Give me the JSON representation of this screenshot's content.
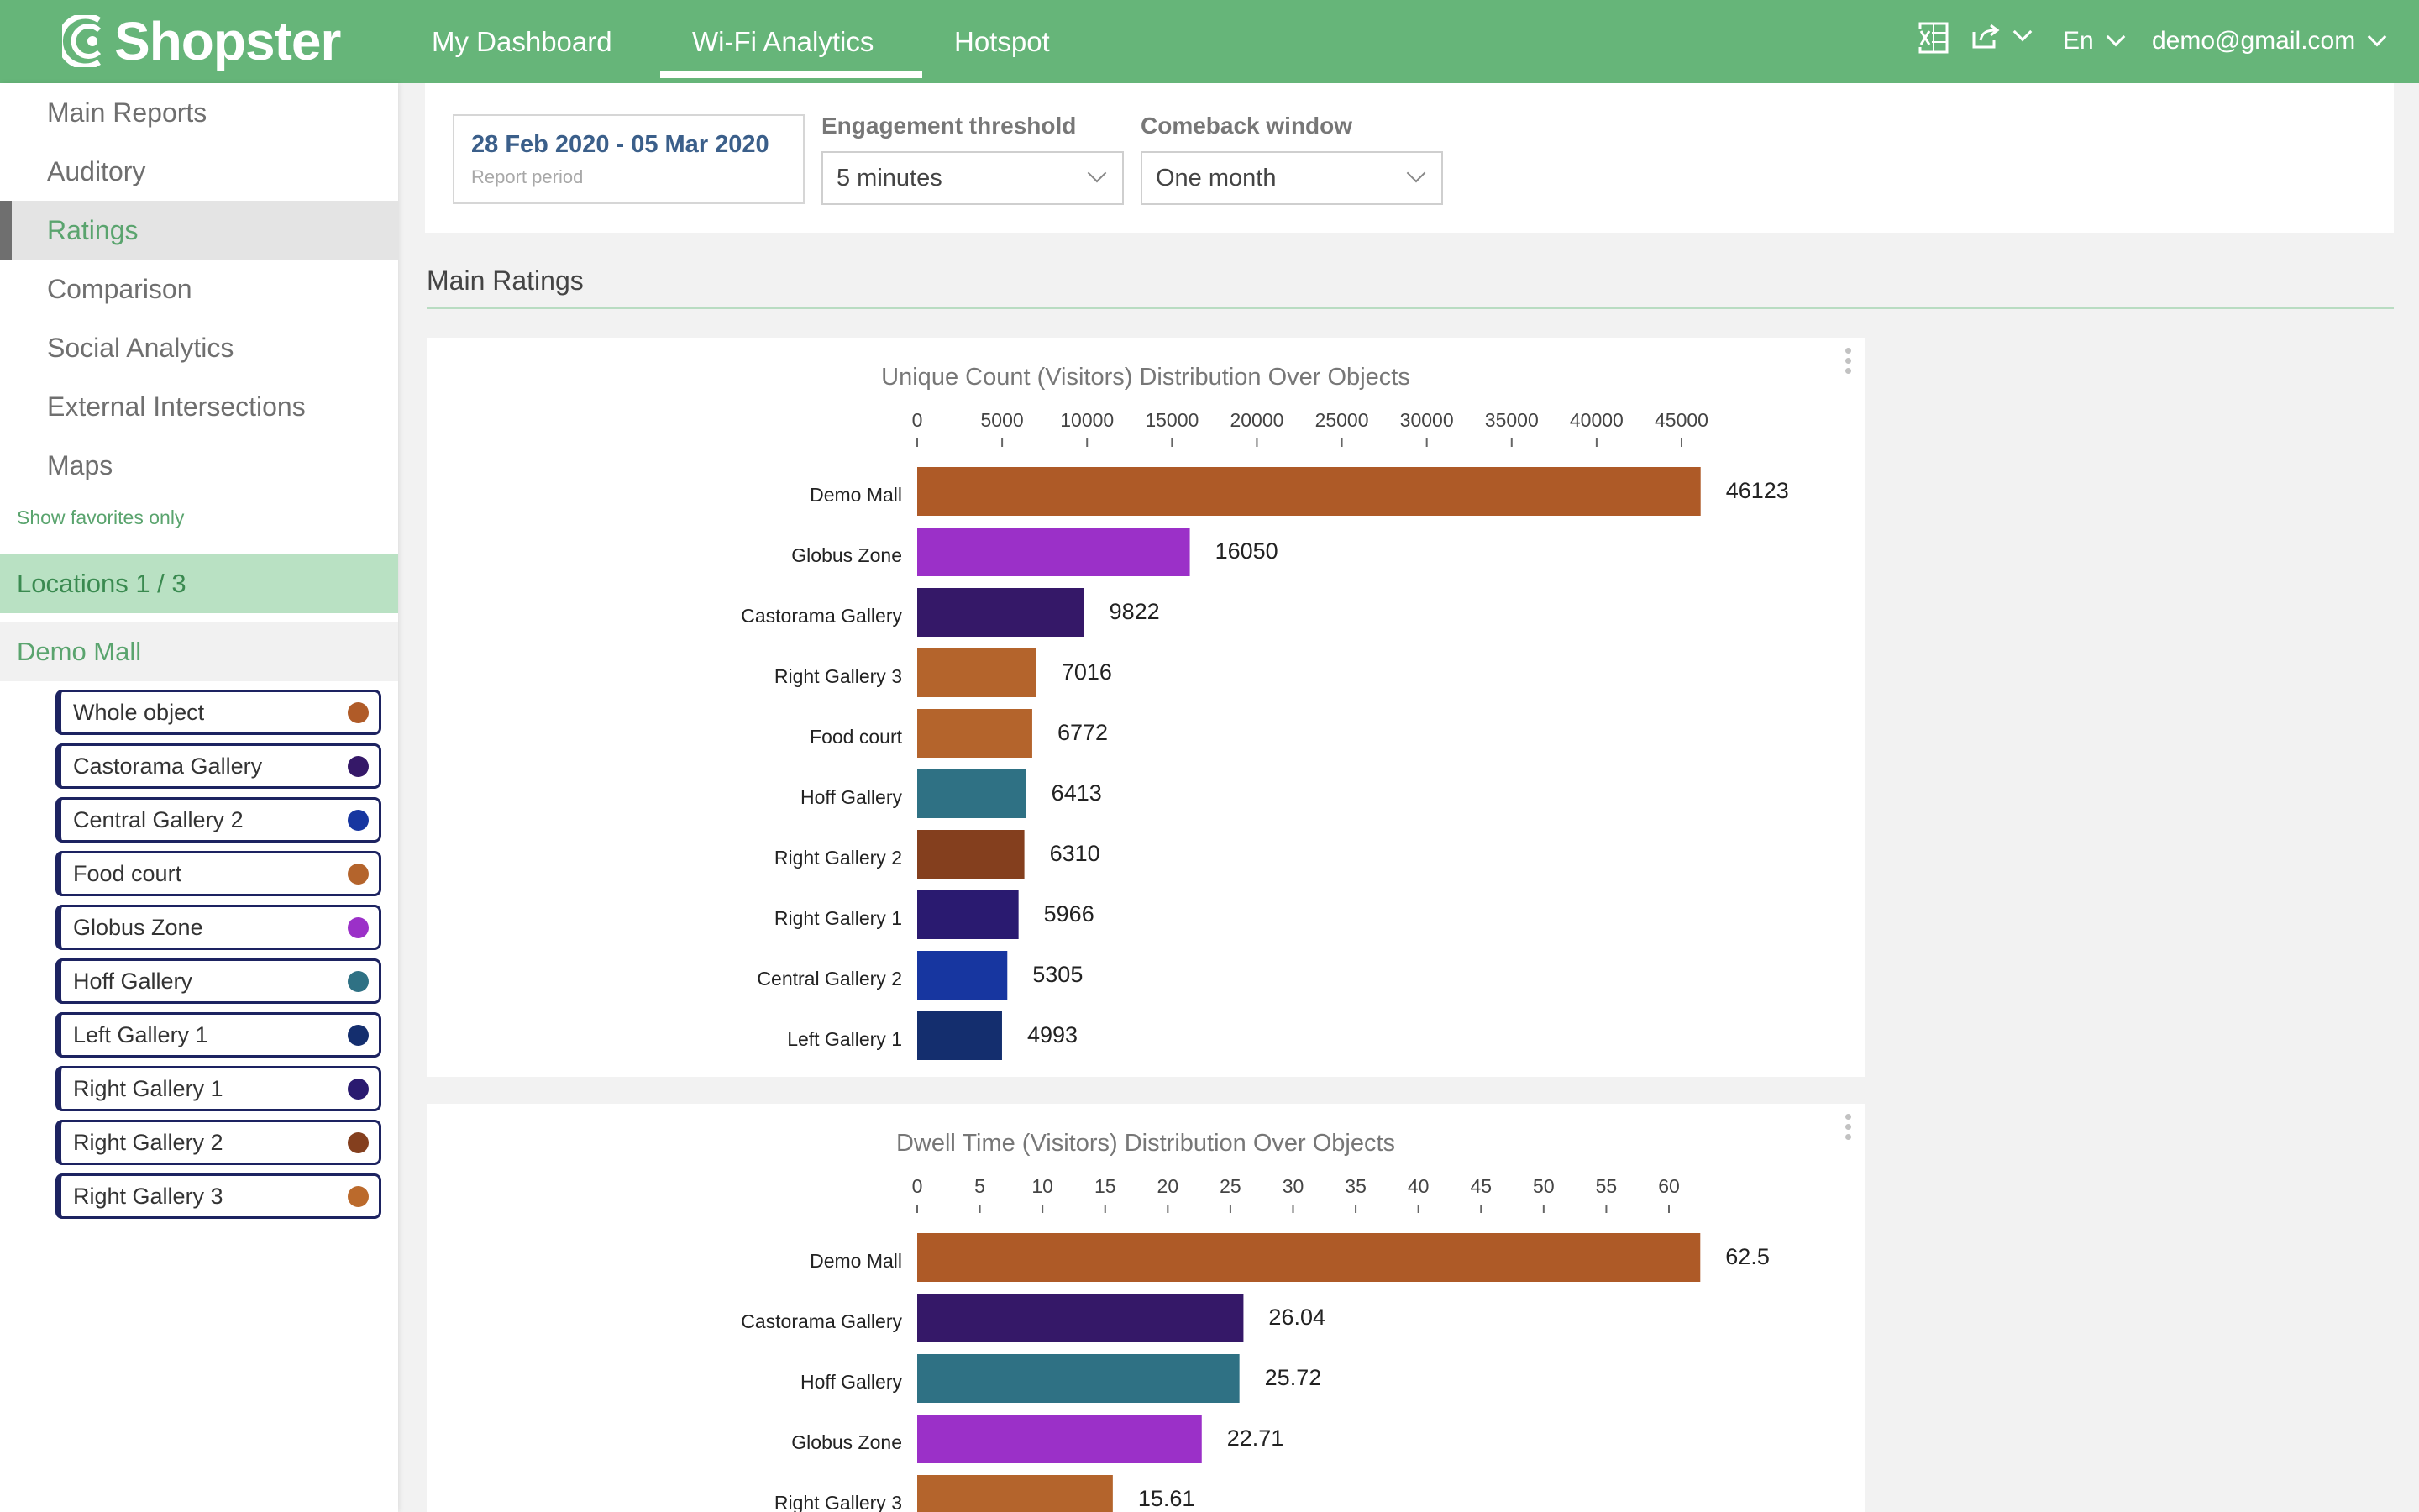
{
  "header": {
    "brand": "Shopster",
    "nav": [
      {
        "label": "My Dashboard"
      },
      {
        "label": "Wi-Fi Analytics"
      },
      {
        "label": "Hotspot"
      }
    ],
    "active_nav": "Wi-Fi Analytics",
    "language": "En",
    "user": "demo@gmail.com",
    "icons": [
      "excel-icon",
      "share-icon"
    ]
  },
  "sidebar": {
    "items": [
      {
        "label": "Main Reports"
      },
      {
        "label": "Auditory"
      },
      {
        "label": "Ratings"
      },
      {
        "label": "Comparison"
      },
      {
        "label": "Social Analytics"
      },
      {
        "label": "External Intersections"
      },
      {
        "label": "Maps"
      }
    ],
    "active_item": "Ratings",
    "favorites_link": "Show favorites only",
    "locations_label": "Locations 1 / 3",
    "location_name": "Demo Mall",
    "objects": [
      {
        "label": "Whole object",
        "color": "#b05b28"
      },
      {
        "label": "Castorama Gallery",
        "color": "#351868"
      },
      {
        "label": "Central Gallery 2",
        "color": "#1736a0"
      },
      {
        "label": "Food court",
        "color": "#b4642c"
      },
      {
        "label": "Globus Zone",
        "color": "#9b30c8"
      },
      {
        "label": "Hoff Gallery",
        "color": "#2f7184"
      },
      {
        "label": "Left Gallery 1",
        "color": "#142e6e"
      },
      {
        "label": "Right Gallery 1",
        "color": "#2a1a70"
      },
      {
        "label": "Right Gallery 2",
        "color": "#843f1e"
      },
      {
        "label": "Right Gallery 3",
        "color": "#bb6a2c"
      }
    ]
  },
  "filters": {
    "period_value": "28 Feb 2020 - 05 Mar 2020",
    "period_label": "Report period",
    "engagement_label": "Engagement threshold",
    "engagement_value": "5 minutes",
    "comeback_label": "Comeback window",
    "comeback_value": "One month"
  },
  "section_title": "Main Ratings",
  "chart_data": [
    {
      "type": "bar",
      "orientation": "horizontal",
      "title": "Unique Count (Visitors) Distribution Over Objects",
      "xlim": [
        0,
        45000
      ],
      "ticks": [
        0,
        5000,
        10000,
        15000,
        20000,
        25000,
        30000,
        35000,
        40000,
        45000
      ],
      "axis_position": "top",
      "categories": [
        "Demo Mall",
        "Globus Zone",
        "Castorama Gallery",
        "Right Gallery 3",
        "Food court",
        "Hoff Gallery",
        "Right Gallery 2",
        "Right Gallery 1",
        "Central Gallery 2",
        "Left Gallery 1"
      ],
      "values": [
        46123,
        16050,
        9822,
        7016,
        6772,
        6413,
        6310,
        5966,
        5305,
        4993
      ],
      "colors": [
        "#ae5a27",
        "#9b30c8",
        "#351868",
        "#b4642c",
        "#b4642c",
        "#2f7184",
        "#843f1e",
        "#2a1a70",
        "#1736a0",
        "#142e6e"
      ]
    },
    {
      "type": "bar",
      "orientation": "horizontal",
      "title": "Dwell Time (Visitors) Distribution Over Objects",
      "xlim": [
        0,
        60
      ],
      "ticks": [
        0,
        5,
        10,
        15,
        20,
        25,
        30,
        35,
        40,
        45,
        50,
        55,
        60
      ],
      "axis_position": "top",
      "categories": [
        "Demo Mall",
        "Castorama Gallery",
        "Hoff Gallery",
        "Globus Zone",
        "Right Gallery 3"
      ],
      "values": [
        62.5,
        26.04,
        25.72,
        22.71,
        15.61
      ],
      "colors": [
        "#ae5a27",
        "#351868",
        "#2f7184",
        "#9b30c8",
        "#b4642c"
      ]
    }
  ]
}
